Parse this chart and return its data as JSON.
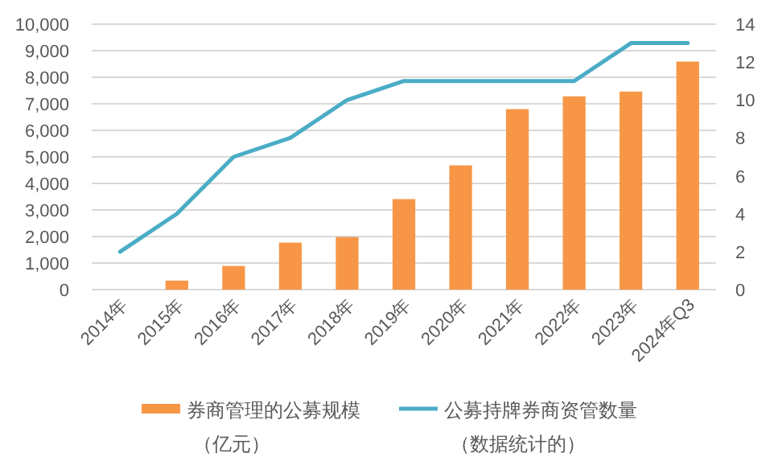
{
  "chart_data": {
    "type": "bar",
    "categories": [
      "2014年",
      "2015年",
      "2016年",
      "2017年",
      "2018年",
      "2019年",
      "2020年",
      "2021年",
      "2022年",
      "2023年",
      "2024年Q3"
    ],
    "series": [
      {
        "name": "券商管理的公募规模（亿元）",
        "color": "#f79646",
        "values": [
          0,
          340,
          890,
          1770,
          1980,
          3410,
          4680,
          6800,
          7280,
          7460,
          8590
        ]
      },
      {
        "name": "公募持牌券商资管数量（数据统计的）",
        "color": "#4bacc6",
        "type": "line",
        "axis": "y2",
        "values": [
          2,
          4,
          7,
          8,
          10,
          11,
          11,
          11,
          11,
          13,
          13
        ]
      }
    ],
    "ylim": [
      0,
      10000
    ],
    "yticks": [
      {
        "value": 0,
        "label": "0"
      },
      {
        "value": 1000,
        "label": "1,000"
      },
      {
        "value": 2000,
        "label": "2,000"
      },
      {
        "value": 3000,
        "label": "3,000"
      },
      {
        "value": 4000,
        "label": "4,000"
      },
      {
        "value": 5000,
        "label": "5,000"
      },
      {
        "value": 6000,
        "label": "6,000"
      },
      {
        "value": 7000,
        "label": "7,000"
      },
      {
        "value": 8000,
        "label": "8,000"
      },
      {
        "value": 9000,
        "label": "9,000"
      },
      {
        "value": 10000,
        "label": "10,000"
      }
    ],
    "y2lim": [
      0,
      14
    ],
    "y2ticks": [
      0,
      2,
      4,
      6,
      8,
      10,
      12,
      14
    ],
    "grid": "y",
    "legend": "bottom"
  }
}
